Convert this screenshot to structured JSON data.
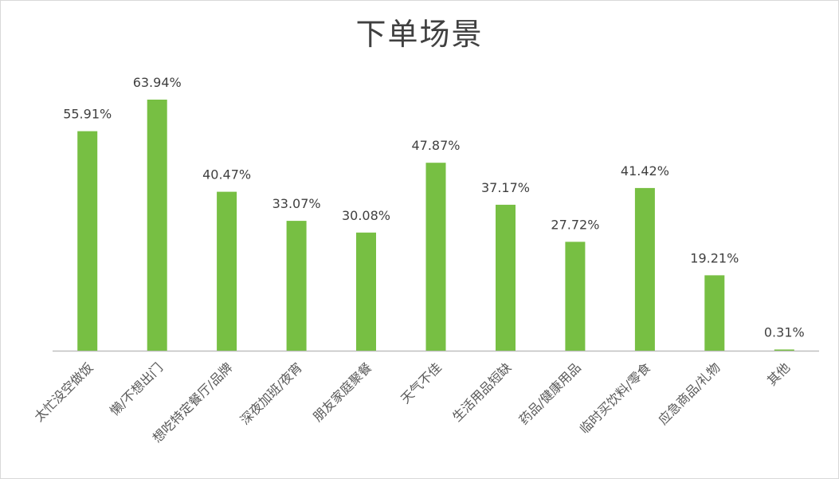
{
  "chart_data": {
    "type": "bar",
    "title": "下单场景",
    "categories": [
      "太忙没空做饭",
      "懒/不想出门",
      "想吃特定餐厅/品牌",
      "深夜加班/夜宵",
      "朋友家庭聚餐",
      "天气不佳",
      "生活用品短缺",
      "药品/健康用品",
      "临时买饮料/零食",
      "应急商品/礼物",
      "其他"
    ],
    "values": [
      55.91,
      63.94,
      40.47,
      33.07,
      30.08,
      47.87,
      37.17,
      27.72,
      41.42,
      19.21,
      0.31
    ],
    "value_labels": [
      "55.91%",
      "63.94%",
      "40.47%",
      "33.07%",
      "30.08%",
      "47.87%",
      "37.17%",
      "27.72%",
      "41.42%",
      "19.21%",
      "0.31%"
    ],
    "ylim": [
      0,
      70
    ],
    "grid": false,
    "legend": "none",
    "bar_color": "#77bf43",
    "axis_color": "#bfbfbf"
  }
}
